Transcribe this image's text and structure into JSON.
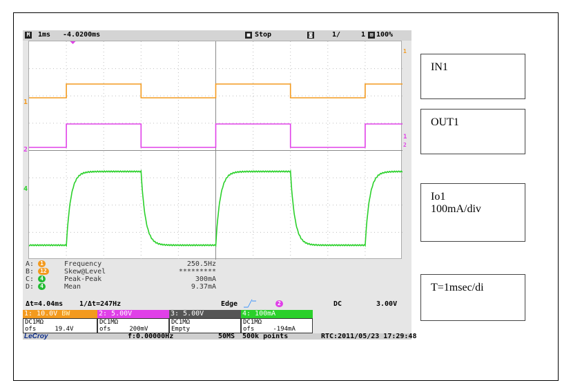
{
  "scope": {
    "header": {
      "timebase": "1ms",
      "delay": "-4.0200ms",
      "state": "Stop",
      "acq": "1/",
      "acq_total": "1",
      "zoom": "100%"
    },
    "channel_markers": [
      "1",
      "2",
      "4"
    ],
    "right_markers": [
      "1",
      "1",
      "2"
    ],
    "measurements": [
      {
        "slot": "A:",
        "ch": "1",
        "name": "Frequency",
        "value": "250.5Hz",
        "color": "#f39a1e"
      },
      {
        "slot": "B:",
        "ch": "12",
        "name": "Skew@Level",
        "value": "*********",
        "color": "#f39a1e"
      },
      {
        "slot": "C:",
        "ch": "4",
        "name": "Peak-Peak",
        "value": "300mA",
        "color": "#22bb33"
      },
      {
        "slot": "D:",
        "ch": "4",
        "name": "Mean",
        "value": "9.37mA",
        "color": "#22bb33"
      }
    ],
    "cursor": {
      "dt": "Δt=4.04ms",
      "inv": "1/Δt=247Hz"
    },
    "trigger": {
      "mode": "Edge",
      "source": "2",
      "coupling": "DC",
      "level": "3.00V"
    },
    "channels": [
      {
        "label": "1: 10.0V",
        "bw": "BW",
        "color": "#f39a1e",
        "coupling": "DC1MΩ",
        "ofs": "ofs",
        "ofs_val": "19.4V"
      },
      {
        "label": "2: 5.00V",
        "bw": "",
        "color": "#e040e8",
        "coupling": "DC1MΩ",
        "ofs": "ofs",
        "ofs_val": "200mV"
      },
      {
        "label": "3: 5.00V",
        "bw": "",
        "color": "#555555",
        "coupling": "DC1MΩ",
        "ofs": "Empty",
        "ofs_val": ""
      },
      {
        "label": "4: 100mA",
        "bw": "",
        "color": "#2ad02a",
        "coupling": "DC1MΩ",
        "ofs": "ofs",
        "ofs_val": "-194mA"
      }
    ],
    "footer": {
      "brand": "LeCroy",
      "freq": "f:0.00000Hz",
      "rate": "50MS",
      "points": "500k points",
      "rtc": "RTC:2011/05/23 17:29:48"
    },
    "trace_colors": {
      "ch1": "#f39a1e",
      "ch2": "#e040e8",
      "ch4": "#2ad02a"
    },
    "waveform": {
      "period_ms": 4,
      "duty": 0.5,
      "first_rise_div": 1.0
    }
  },
  "labels": {
    "in1": "IN1",
    "out1": "OUT1",
    "io1_line1": "Io1",
    "io1_line2": "100mA/div",
    "time": "T=1msec/di"
  }
}
